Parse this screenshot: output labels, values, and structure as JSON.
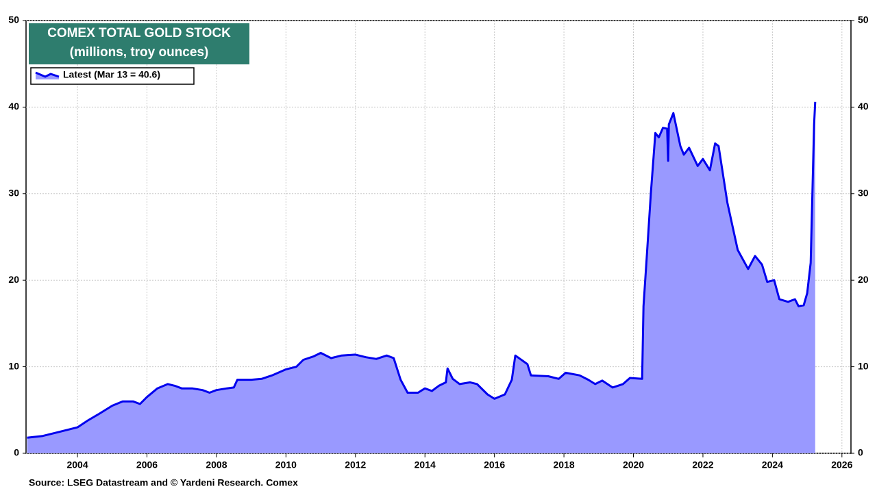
{
  "chart_data": {
    "type": "area",
    "title": "COMEX TOTAL GOLD STOCK",
    "subtitle": "(millions, troy ounces)",
    "source": "Source: LSEG Datastream and © Yardeni Research. Comex",
    "x": [
      2002.55,
      2003.0,
      2003.5,
      2004.0,
      2004.3,
      2004.6,
      2005.0,
      2005.3,
      2005.6,
      2005.8,
      2006.0,
      2006.3,
      2006.6,
      2006.8,
      2007.0,
      2007.3,
      2007.6,
      2007.8,
      2008.0,
      2008.3,
      2008.5,
      2008.6,
      2009.0,
      2009.3,
      2009.6,
      2010.0,
      2010.3,
      2010.5,
      2010.8,
      2011.0,
      2011.3,
      2011.6,
      2012.0,
      2012.3,
      2012.6,
      2012.9,
      2013.1,
      2013.3,
      2013.5,
      2013.8,
      2014.0,
      2014.2,
      2014.4,
      2014.6,
      2014.65,
      2014.8,
      2015.0,
      2015.3,
      2015.5,
      2015.8,
      2016.0,
      2016.3,
      2016.5,
      2016.6,
      2016.95,
      2017.05,
      2017.55,
      2017.85,
      2018.05,
      2018.45,
      2018.7,
      2018.9,
      2019.1,
      2019.4,
      2019.7,
      2019.9,
      2020.25,
      2020.29,
      2020.38,
      2020.5,
      2020.63,
      2020.73,
      2020.85,
      2020.97,
      2021.0,
      2021.02,
      2021.15,
      2021.35,
      2021.45,
      2021.6,
      2021.85,
      2022.0,
      2022.2,
      2022.35,
      2022.45,
      2022.7,
      2023.0,
      2023.3,
      2023.5,
      2023.7,
      2023.85,
      2024.05,
      2024.2,
      2024.45,
      2024.65,
      2024.75,
      2024.9,
      2025.0,
      2025.1,
      2025.15,
      2025.2,
      2025.23
    ],
    "series": [
      {
        "name": "Latest (Mar 13 = 40.6)",
        "color": "#0000ee",
        "fill": "#9999ff",
        "values": [
          1.8,
          2.0,
          2.5,
          3.0,
          3.8,
          4.5,
          5.5,
          6.0,
          6.0,
          5.7,
          6.5,
          7.5,
          8.0,
          7.8,
          7.5,
          7.5,
          7.3,
          7.0,
          7.3,
          7.5,
          7.6,
          8.5,
          8.5,
          8.6,
          9.0,
          9.7,
          10.0,
          10.8,
          11.2,
          11.6,
          11.0,
          11.3,
          11.4,
          11.1,
          10.9,
          11.3,
          11.0,
          8.5,
          7.0,
          7.0,
          7.5,
          7.2,
          7.8,
          8.2,
          9.8,
          8.6,
          8.0,
          8.2,
          8.0,
          6.8,
          6.3,
          6.8,
          8.5,
          11.3,
          10.3,
          9.0,
          8.9,
          8.6,
          9.3,
          9.0,
          8.5,
          8.0,
          8.4,
          7.6,
          8.0,
          8.7,
          8.6,
          17.0,
          22.5,
          30.0,
          37.0,
          36.5,
          37.6,
          37.5,
          33.8,
          38.0,
          39.3,
          35.5,
          34.5,
          35.3,
          33.2,
          34.0,
          32.7,
          35.8,
          35.5,
          29.0,
          23.5,
          21.3,
          22.8,
          21.8,
          19.8,
          20.0,
          17.8,
          17.5,
          17.8,
          17.0,
          17.1,
          18.5,
          22.0,
          30.0,
          38.0,
          40.6
        ]
      }
    ],
    "xlim": [
      2002.52,
      2026.26
    ],
    "xticks": [
      2004,
      2006,
      2008,
      2010,
      2012,
      2014,
      2016,
      2018,
      2020,
      2022,
      2024,
      2026
    ],
    "ylim": [
      0,
      50
    ],
    "yticks": [
      0,
      10,
      20,
      30,
      40,
      50
    ],
    "y2lim": [
      0,
      50
    ],
    "y2ticks": [
      0,
      10,
      20,
      30,
      40,
      50
    ],
    "grid": true
  }
}
